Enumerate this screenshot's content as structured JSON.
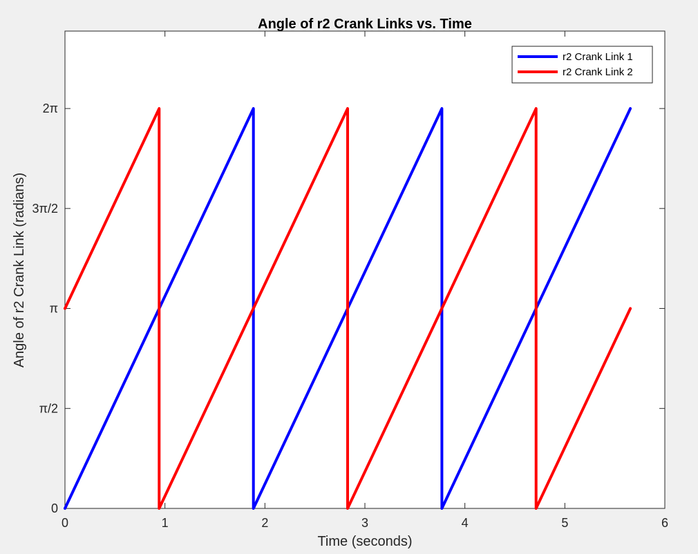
{
  "chart_data": {
    "type": "line",
    "title": "Angle of r2 Crank Links vs. Time",
    "xlabel": "Time (seconds)",
    "ylabel": "Angle of r2 Crank Link (radians)",
    "xlim": [
      0,
      6
    ],
    "ylim": [
      0,
      7.5
    ],
    "grid": false,
    "legend_position": "top-right",
    "x_ticks": [
      {
        "value": 0,
        "label": "0"
      },
      {
        "value": 1,
        "label": "1"
      },
      {
        "value": 2,
        "label": "2"
      },
      {
        "value": 3,
        "label": "3"
      },
      {
        "value": 4,
        "label": "4"
      },
      {
        "value": 5,
        "label": "5"
      },
      {
        "value": 6,
        "label": "6"
      }
    ],
    "y_ticks": [
      {
        "value": 0,
        "label": "0"
      },
      {
        "value": 1.5708,
        "label": "π/2"
      },
      {
        "value": 3.1416,
        "label": "π"
      },
      {
        "value": 4.7124,
        "label": "3π/2"
      },
      {
        "value": 6.2832,
        "label": "2π"
      }
    ],
    "series": [
      {
        "name": "r2 Crank Link 1",
        "color": "#0000ff",
        "x": [
          0,
          1.885,
          1.885,
          3.77,
          3.77,
          5.655
        ],
        "y": [
          0,
          6.2832,
          0,
          6.2832,
          0,
          6.2832
        ]
      },
      {
        "name": "r2 Crank Link 2",
        "color": "#ff0000",
        "x": [
          0,
          0.9425,
          0.9425,
          2.8275,
          2.8275,
          4.7125,
          4.7125,
          5.655
        ],
        "y": [
          3.1416,
          6.2832,
          0,
          6.2832,
          0,
          6.2832,
          0,
          3.1416
        ]
      }
    ]
  }
}
